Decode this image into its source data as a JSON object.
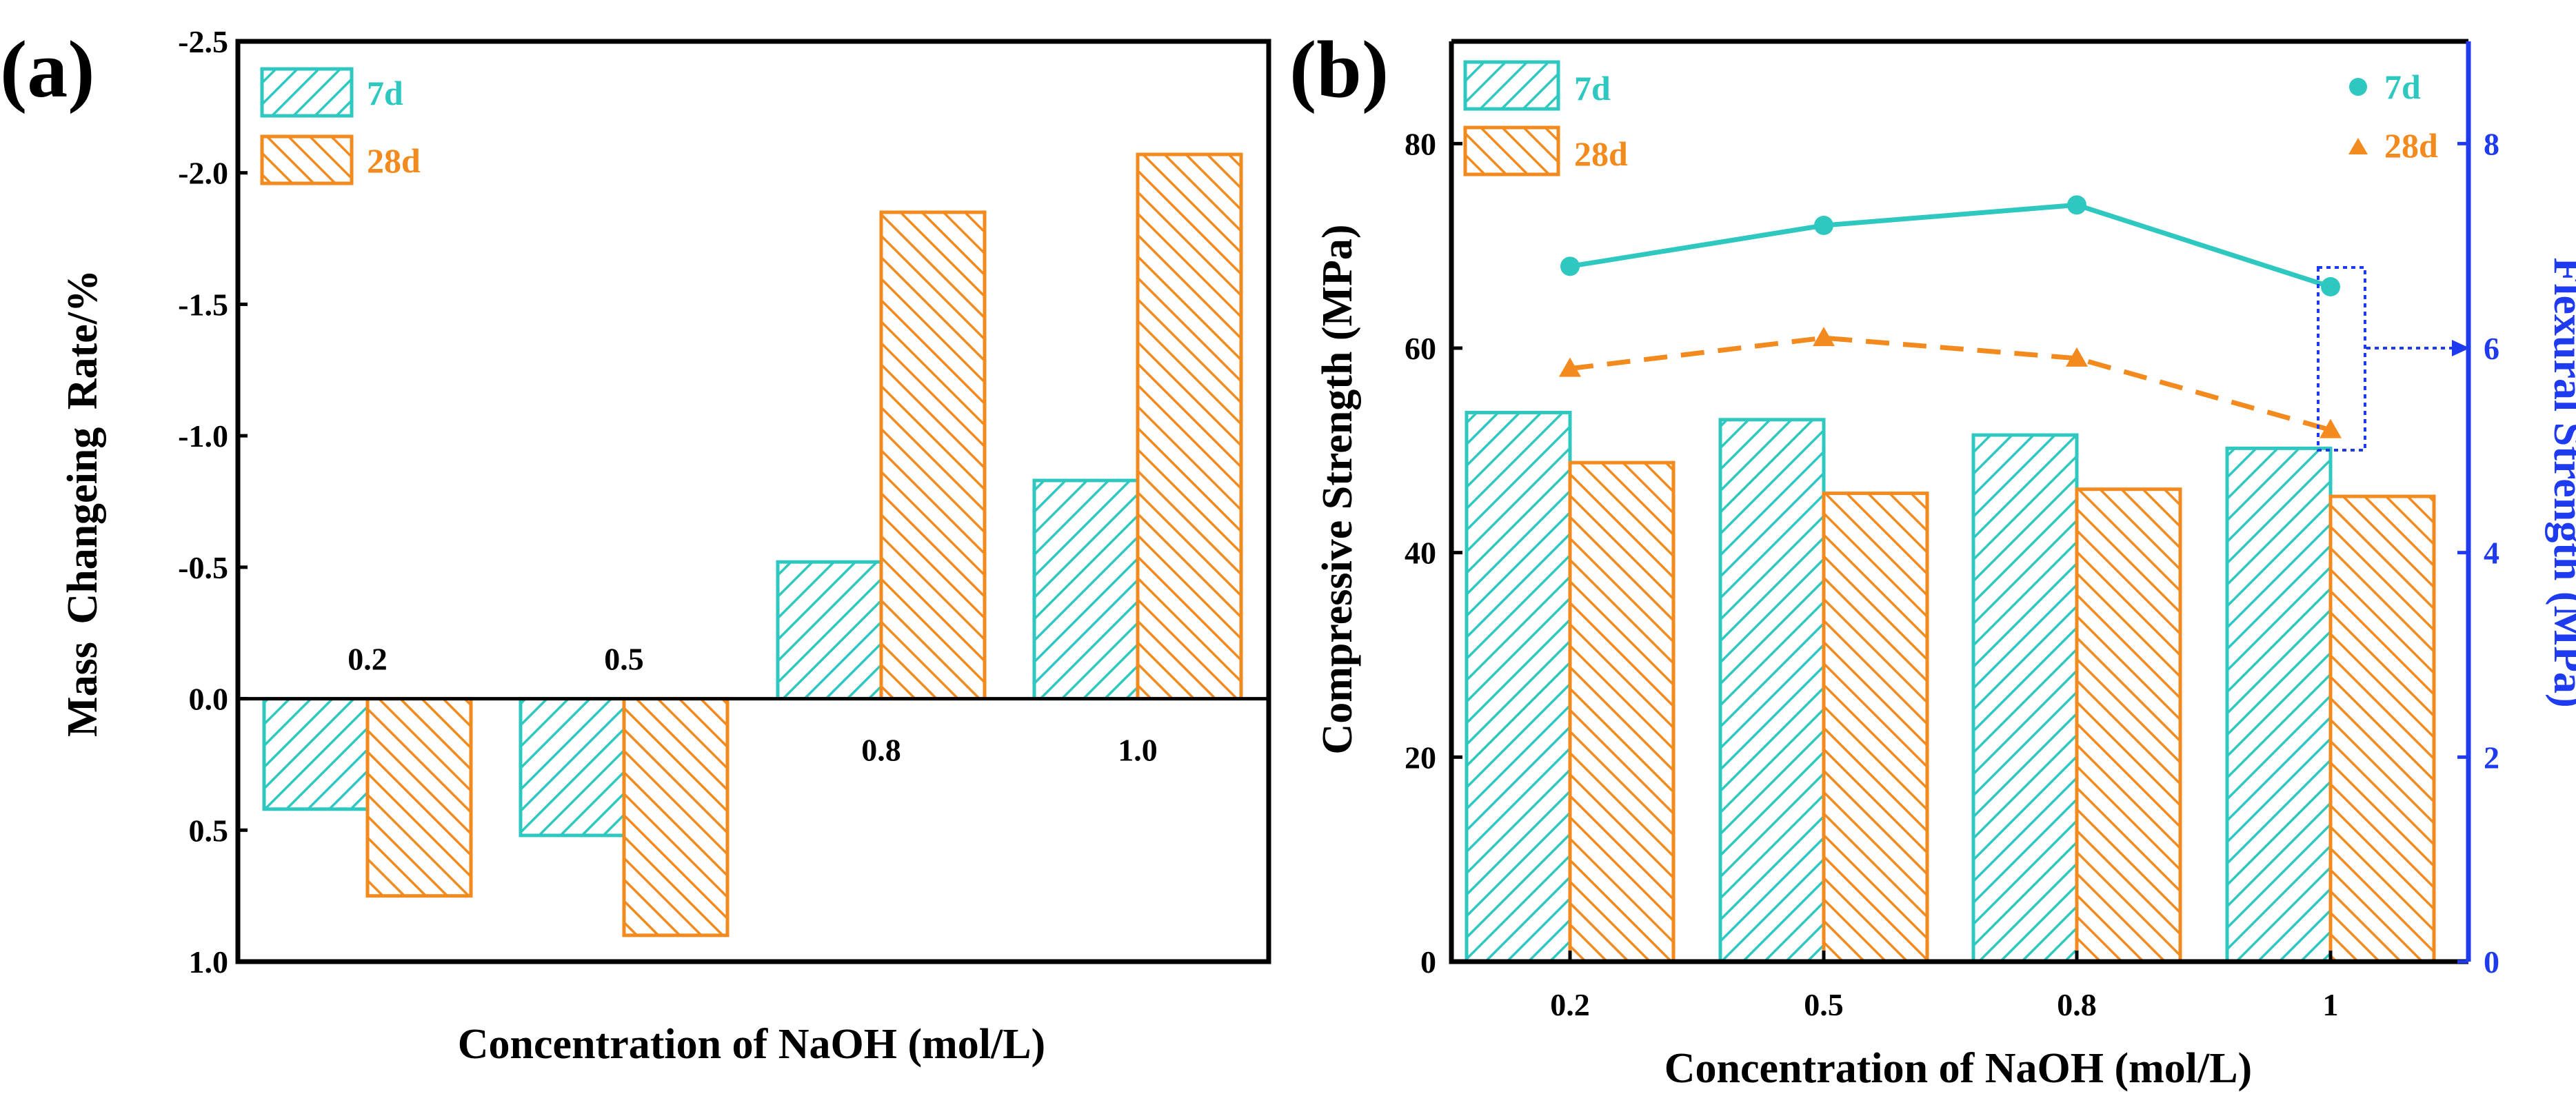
{
  "panel_a": {
    "label": "(a)",
    "legend": {
      "s7": "7d",
      "s28": "28d"
    },
    "chart_data": {
      "type": "bar",
      "title": "",
      "xlabel": "Concentration of NaOH (mol/L)",
      "ylabel": "Mass  Changeing  Rate/%",
      "categories": [
        "0.2",
        "0.5",
        "0.8",
        "1.0"
      ],
      "series": [
        {
          "name": "7d",
          "values": [
            0.42,
            0.52,
            -0.52,
            -0.83
          ]
        },
        {
          "name": "28d",
          "values": [
            0.75,
            0.9,
            -1.85,
            -2.07
          ]
        }
      ],
      "ylim": [
        1.0,
        -2.5
      ],
      "ytick_labels": [
        "1.0",
        "0.5",
        "0.0",
        "-0.5",
        "-1.0",
        "-1.5",
        "-2.0",
        "-2.5"
      ],
      "y_axis_inverted": true
    }
  },
  "panel_b": {
    "label": "(b)",
    "legend_bars": {
      "s7": "7d",
      "s28": "28d"
    },
    "legend_points": {
      "s7": "7d",
      "s28": "28d"
    },
    "chart_data": {
      "type": "bar+line",
      "title": "",
      "xlabel": "Concentration of NaOH (mol/L)",
      "ylabel_left": "Compressive Strength (MPa)",
      "ylabel_right": "Flexural Strength (MPa)",
      "categories": [
        "0.2",
        "0.5",
        "0.8",
        "1"
      ],
      "bar_series": [
        {
          "name": "7d",
          "axis": "left",
          "values": [
            53.7,
            53.0,
            51.5,
            50.2
          ]
        },
        {
          "name": "28d",
          "axis": "left",
          "values": [
            48.8,
            45.8,
            46.2,
            45.5
          ]
        }
      ],
      "line_series": [
        {
          "name": "7d",
          "axis": "right",
          "marker": "circle",
          "values": [
            6.8,
            7.2,
            7.4,
            6.6
          ]
        },
        {
          "name": "28d",
          "axis": "right",
          "marker": "triangle",
          "values": [
            5.8,
            6.1,
            5.9,
            5.2
          ]
        }
      ],
      "ylim_left": [
        0,
        90
      ],
      "ylim_right": [
        0,
        9
      ],
      "yticks_left": [
        "0",
        "20",
        "40",
        "60",
        "80"
      ],
      "yticks_right": [
        "0",
        "2",
        "4",
        "6",
        "8"
      ]
    }
  },
  "colors": {
    "cyan": "#2EC8C0",
    "orange": "#F28A1E",
    "blue": "#1F3BF0",
    "axis": "#000000"
  }
}
